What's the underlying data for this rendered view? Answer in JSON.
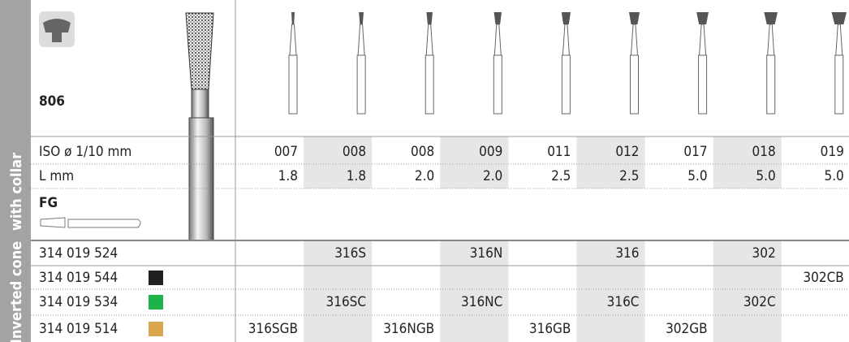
{
  "header": {
    "number": "806",
    "side_label_top": "with collar",
    "side_label_bottom": "Inverted cone",
    "shank": "FG"
  },
  "specs": {
    "iso_label": "ISO ø 1/10 mm",
    "iso": [
      "007",
      "008",
      "008",
      "009",
      "011",
      "012",
      "017",
      "018",
      "019"
    ],
    "length_label": "L mm",
    "length": [
      "1.8",
      "1.8",
      "2.0",
      "2.0",
      "2.5",
      "2.5",
      "5.0",
      "5.0",
      "5.0"
    ]
  },
  "rows": [
    {
      "code": "314 019 524",
      "color": null,
      "cells": [
        null,
        "316S",
        null,
        "316N",
        null,
        "316",
        null,
        "302",
        null
      ]
    },
    {
      "code": "314 019 544",
      "color": "#231f20",
      "cells": [
        null,
        null,
        null,
        null,
        null,
        null,
        null,
        null,
        "302CB"
      ]
    },
    {
      "code": "314 019 534",
      "color": "#1db34a",
      "cells": [
        null,
        "316SC",
        null,
        "316NC",
        null,
        "316C",
        null,
        "302C",
        null
      ]
    },
    {
      "code": "314 019 514",
      "color": "#d9a64e",
      "cells": [
        "316SGB",
        null,
        "316NGB",
        null,
        "316GB",
        null,
        "302GB",
        null,
        null
      ]
    }
  ]
}
